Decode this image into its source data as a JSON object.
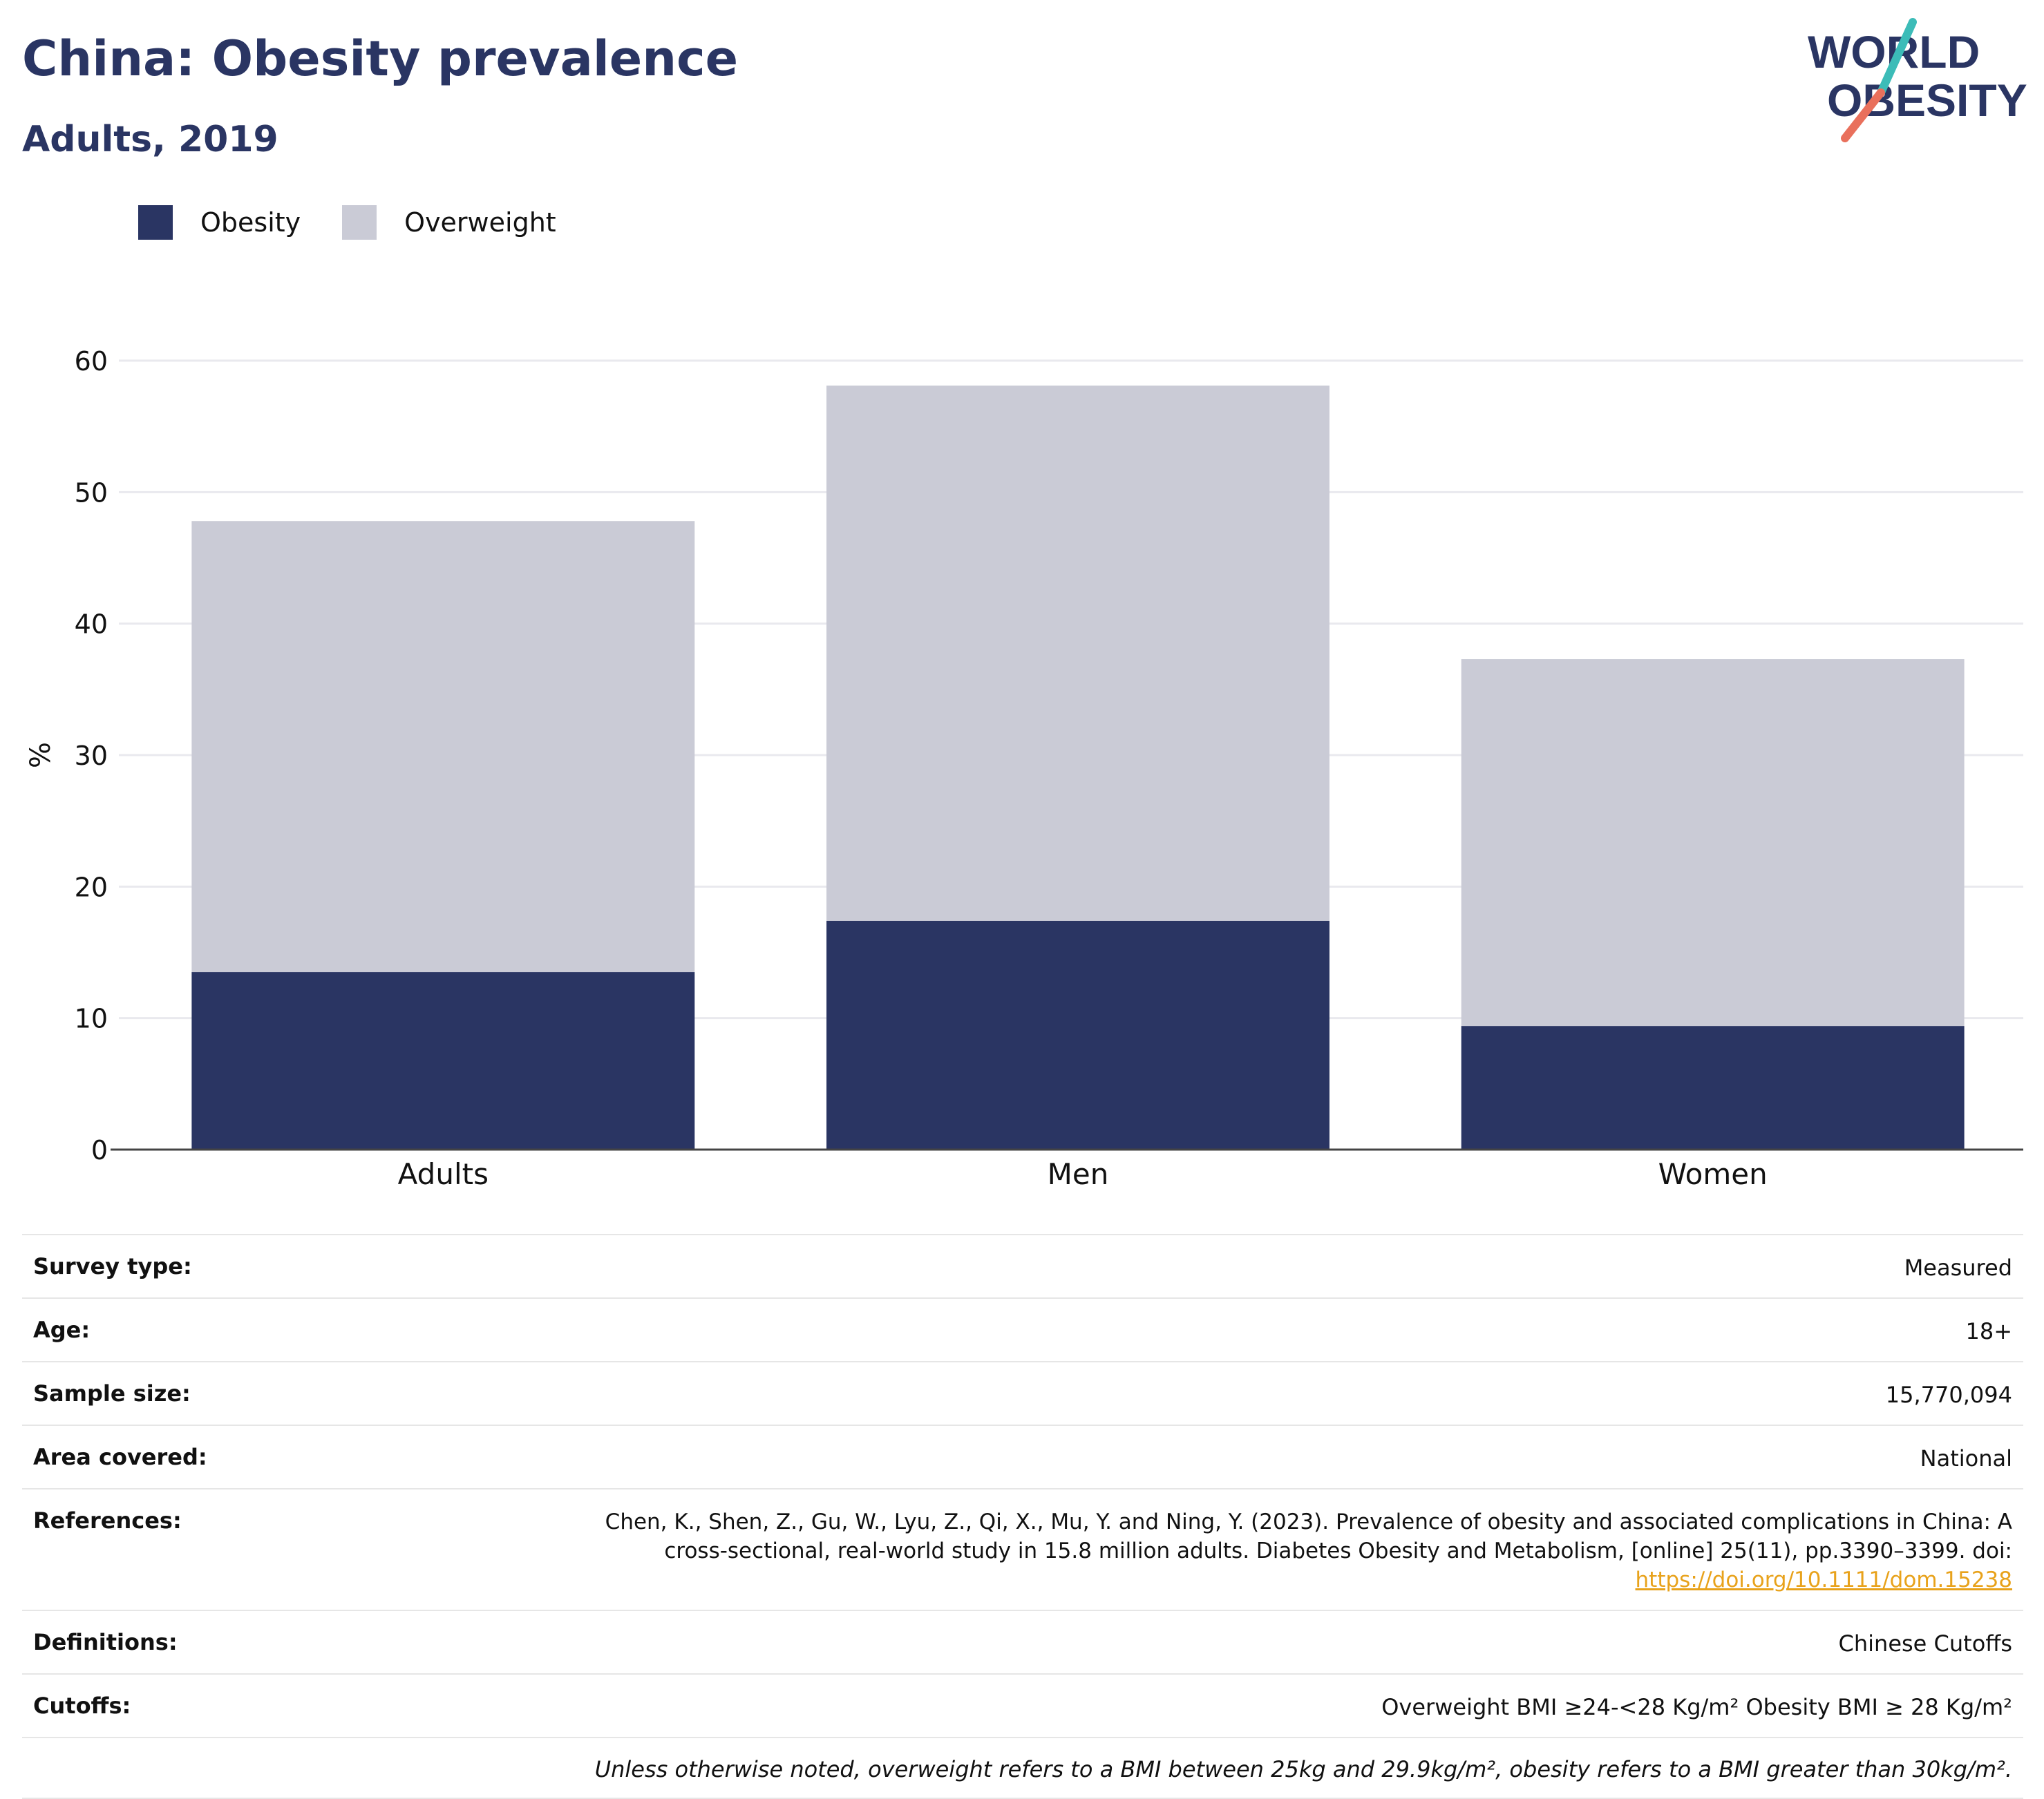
{
  "header": {
    "title": "China: Obesity prevalence",
    "subtitle": "Adults, 2019"
  },
  "logo": {
    "line1": "WORLD",
    "line2": "OBESITY"
  },
  "colors": {
    "obesity": "#2a3563",
    "overweight": "#cacbd6",
    "brand_text": "#2a3563",
    "link": "#e8a21b",
    "logo_teal": "#3cbcb8",
    "logo_coral": "#e9705c"
  },
  "chart_data": {
    "type": "bar",
    "stacked": true,
    "categories": [
      "Adults",
      "Men",
      "Women"
    ],
    "series": [
      {
        "name": "Obesity",
        "values": [
          13.5,
          17.4,
          9.4
        ]
      },
      {
        "name": "Overweight",
        "values": [
          34.3,
          40.7,
          27.9
        ]
      }
    ],
    "ylabel": "%",
    "ylim": [
      0,
      60
    ],
    "yticks": [
      0,
      10,
      20,
      30,
      40,
      50,
      60
    ],
    "grid": true,
    "legend_position": "top-left"
  },
  "info": {
    "survey_type": {
      "label": "Survey type:",
      "value": "Measured"
    },
    "age": {
      "label": "Age:",
      "value": "18+"
    },
    "sample_size": {
      "label": "Sample size:",
      "value": "15,770,094"
    },
    "area": {
      "label": "Area covered:",
      "value": "National"
    },
    "references": {
      "label": "References:",
      "text": "Chen, K., Shen, Z., Gu, W., Lyu, Z., Qi, X., Mu, Y. and Ning, Y. (2023). Prevalence of obesity and associated complications in China: A cross-sectional, real-world study in 15.8 million adults. Diabetes Obesity and Metabolism, [online] 25(11), pp.3390–3399. doi:",
      "doi": "https://doi.org/10.1111/dom.15238"
    },
    "definitions": {
      "label": "Definitions:",
      "value": "Chinese Cutoffs"
    },
    "cutoffs": {
      "label": "Cutoffs:",
      "value": "Overweight BMI ≥24-<28 Kg/m² Obesity BMI ≥ 28 Kg/m²"
    },
    "footnote": "Unless otherwise noted, overweight refers to a BMI between 25kg and 29.9kg/m², obesity refers to a BMI greater than 30kg/m²."
  }
}
